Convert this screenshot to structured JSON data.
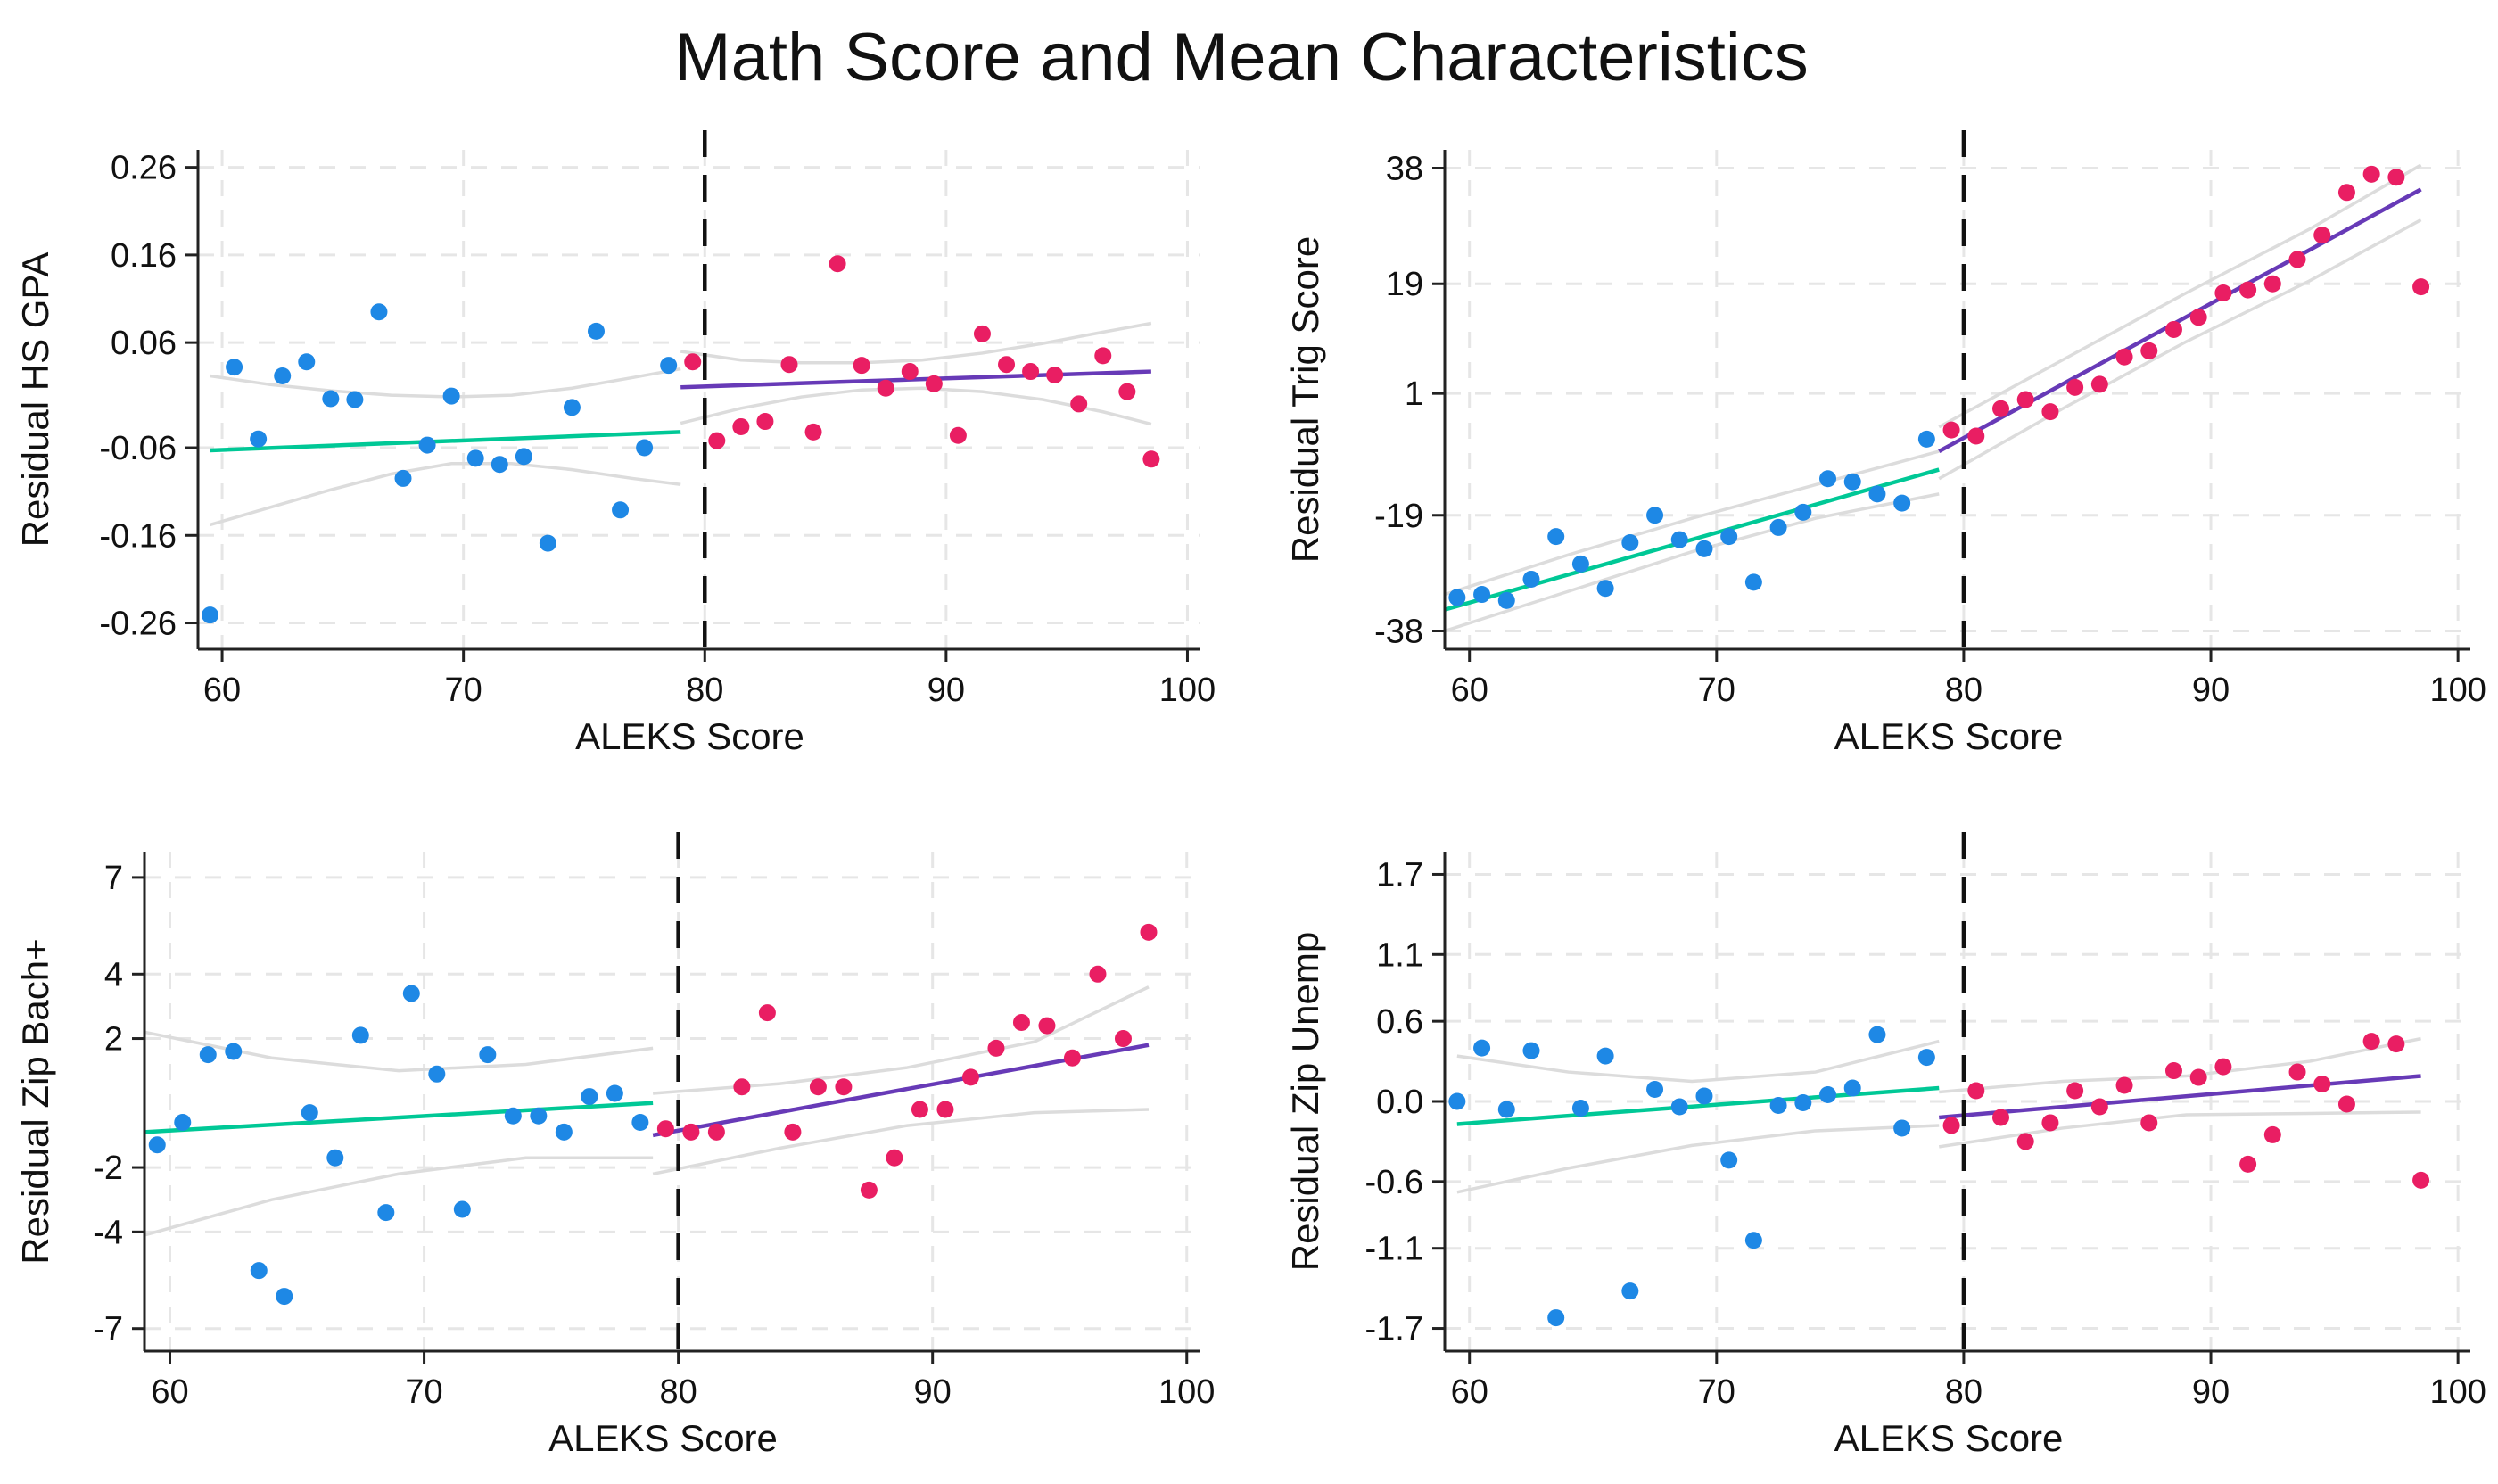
{
  "figure": {
    "title": "Math Score and Mean Characteristics",
    "colors": {
      "below_points": "#1e88e5",
      "above_points": "#e91e63",
      "below_fit": "#00c896",
      "above_fit": "#673ab7",
      "ci": "#dcdcdc",
      "cutoff": "#111111"
    }
  },
  "chart_data": [
    {
      "type": "scatter",
      "xlabel": "ALEKS Score",
      "ylabel": "Residual HS GPA",
      "xlim": [
        59,
        100.5
      ],
      "ylim": [
        -0.29,
        0.28
      ],
      "xticks": [
        60,
        70,
        80,
        90,
        100
      ],
      "yticks": [
        0.26,
        0.16,
        0.06,
        -0.06,
        -0.16,
        -0.26
      ],
      "ytick_labels": [
        "0.26",
        "0.16",
        "0.06",
        "-0.06",
        "-0.16",
        "-0.26"
      ],
      "cutoff": 80,
      "series": [
        {
          "name": "below",
          "x": [
            59.5,
            60.5,
            61.5,
            62.5,
            63.5,
            64.5,
            65.5,
            66.5,
            67.5,
            68.5,
            69.5,
            70.5,
            71.5,
            72.5,
            73.5,
            74.5,
            75.5,
            76.5,
            77.5,
            78.5
          ],
          "y": [
            -0.251,
            0.032,
            -0.05,
            0.022,
            0.038,
            -0.004,
            -0.005,
            0.095,
            -0.095,
            -0.057,
            -0.001,
            -0.072,
            -0.079,
            -0.07,
            -0.169,
            -0.014,
            0.073,
            -0.131,
            -0.06,
            0.034
          ]
        },
        {
          "name": "above",
          "x": [
            79.5,
            80.5,
            81.5,
            82.5,
            83.5,
            84.5,
            85.5,
            86.5,
            87.5,
            88.5,
            89.5,
            90.5,
            91.5,
            92.5,
            93.5,
            94.5,
            95.5,
            96.5,
            97.5,
            98.5
          ],
          "y": [
            0.038,
            -0.052,
            -0.036,
            -0.03,
            0.035,
            -0.042,
            0.15,
            0.034,
            0.008,
            0.027,
            0.013,
            -0.046,
            0.07,
            0.035,
            0.027,
            0.023,
            -0.01,
            0.045,
            0.004,
            -0.073
          ]
        }
      ],
      "fits": [
        {
          "name": "below",
          "x": [
            59.5,
            79
          ],
          "y": [
            -0.063,
            -0.042
          ]
        },
        {
          "name": "above",
          "x": [
            79,
            98.5
          ],
          "y": [
            0.009,
            0.027
          ]
        }
      ],
      "ci_bands": [
        {
          "name": "below",
          "x": [
            59.5,
            62,
            64.5,
            67,
            69.5,
            72,
            74.5,
            77,
            79
          ],
          "upper": [
            0.022,
            0.012,
            0.005,
            0.0,
            -0.002,
            0.0,
            0.008,
            0.02,
            0.03
          ],
          "lower": [
            -0.148,
            -0.128,
            -0.108,
            -0.09,
            -0.078,
            -0.078,
            -0.085,
            -0.095,
            -0.102
          ]
        },
        {
          "name": "above",
          "x": [
            79,
            81.5,
            84,
            86.5,
            89,
            91.5,
            94,
            96.5,
            98.5
          ],
          "upper": [
            0.05,
            0.04,
            0.037,
            0.037,
            0.04,
            0.048,
            0.059,
            0.072,
            0.082
          ],
          "lower": [
            -0.032,
            -0.015,
            -0.002,
            0.006,
            0.008,
            0.004,
            -0.005,
            -0.019,
            -0.033
          ]
        }
      ]
    },
    {
      "type": "scatter",
      "xlabel": "ALEKS Score",
      "ylabel": "Residual Trig Score",
      "xlim": [
        59,
        100.5
      ],
      "ylim": [
        -41,
        41
      ],
      "xticks": [
        60,
        70,
        80,
        90,
        100
      ],
      "yticks": [
        38,
        19,
        1,
        -19,
        -38
      ],
      "ytick_labels": [
        "38",
        "19",
        "1",
        "-19",
        "-38"
      ],
      "cutoff": 80,
      "series": [
        {
          "name": "below",
          "x": [
            59.5,
            60.5,
            61.5,
            62.5,
            63.5,
            64.5,
            65.5,
            66.5,
            67.5,
            68.5,
            69.5,
            70.5,
            71.5,
            72.5,
            73.5,
            74.5,
            75.5,
            76.5,
            77.5,
            78.5
          ],
          "y": [
            -32.5,
            -32.0,
            -33.0,
            -29.5,
            -22.5,
            -27.0,
            -31.0,
            -23.5,
            -19.0,
            -23.0,
            -24.5,
            -22.5,
            -30.0,
            -21.0,
            -18.5,
            -13.0,
            -13.5,
            -15.5,
            -17.0,
            -6.5
          ]
        },
        {
          "name": "above",
          "x": [
            79.5,
            80.5,
            81.5,
            82.5,
            83.5,
            84.5,
            85.5,
            86.5,
            87.5,
            88.5,
            89.5,
            90.5,
            91.5,
            92.5,
            93.5,
            94.5,
            95.5,
            96.5,
            97.5,
            98.5
          ],
          "y": [
            -5.0,
            -6.0,
            -1.5,
            0.0,
            -2.0,
            2.0,
            2.5,
            7.0,
            8.0,
            11.5,
            13.5,
            17.5,
            18.0,
            19.0,
            23.0,
            27.0,
            34.0,
            37.0,
            36.5,
            18.5
          ]
        },
        {
          "name": "below_extra",
          "x": [],
          "y": []
        }
      ],
      "fits": [
        {
          "name": "below",
          "x": [
            59,
            79
          ],
          "y": [
            -34.5,
            -11.5
          ]
        },
        {
          "name": "above",
          "x": [
            79,
            98.5
          ],
          "y": [
            -8.5,
            34.5
          ]
        }
      ],
      "ci_bands": [
        {
          "name": "below",
          "x": [
            59,
            64,
            69,
            74,
            79
          ],
          "upper": [
            -32.0,
            -25.5,
            -19.5,
            -14.0,
            -8.5
          ],
          "lower": [
            -38.0,
            -31.5,
            -25.0,
            -19.5,
            -15.5
          ]
        },
        {
          "name": "above",
          "x": [
            79,
            84,
            89,
            94,
            98.5
          ],
          "upper": [
            -4.5,
            6.5,
            17.5,
            28.0,
            38.5
          ],
          "lower": [
            -13.0,
            -1.5,
            9.5,
            19.5,
            29.5
          ]
        }
      ]
    },
    {
      "type": "scatter",
      "xlabel": "ALEKS Score",
      "ylabel": "Residual Zip Bach+",
      "xlim": [
        59,
        100.5
      ],
      "ylim": [
        -7.7,
        7.8
      ],
      "xticks": [
        60,
        70,
        80,
        90,
        100
      ],
      "yticks": [
        7,
        4,
        2,
        -2,
        -4,
        -7
      ],
      "ytick_labels": [
        "7",
        "4",
        "2",
        "-2",
        "-4",
        "-7"
      ],
      "cutoff": 80,
      "series": [
        {
          "name": "below",
          "x": [
            59.5,
            60.5,
            61.5,
            62.5,
            63.5,
            64.5,
            65.5,
            66.5,
            67.5,
            68.5,
            69.5,
            70.5,
            71.5,
            72.5,
            73.5,
            74.5,
            75.5,
            76.5,
            77.5,
            78.5
          ],
          "y": [
            -1.3,
            -0.6,
            1.5,
            1.6,
            -5.2,
            -6.0,
            -0.3,
            -1.7,
            2.1,
            -3.4,
            3.4,
            0.9,
            -3.3,
            1.5,
            -0.4,
            -0.4,
            -0.9,
            0.2,
            0.3,
            -0.6
          ]
        },
        {
          "name": "above",
          "x": [
            79.5,
            80.5,
            81.5,
            82.5,
            83.5,
            84.5,
            85.5,
            86.5,
            87.5,
            88.5,
            89.5,
            90.5,
            91.5,
            92.5,
            93.5,
            94.5,
            95.5,
            96.5,
            97.5,
            98.5
          ],
          "y": [
            -0.8,
            -0.9,
            -0.9,
            0.5,
            2.8,
            -0.9,
            0.5,
            0.5,
            -2.7,
            -1.7,
            -0.2,
            -0.2,
            0.8,
            1.7,
            2.5,
            2.4,
            1.4,
            4.0,
            2.0,
            5.3
          ]
        }
      ],
      "fits": [
        {
          "name": "below",
          "x": [
            59,
            79
          ],
          "y": [
            -0.9,
            0.0
          ]
        },
        {
          "name": "above",
          "x": [
            79,
            98.5
          ],
          "y": [
            -1.0,
            1.8
          ]
        }
      ],
      "ci_bands": [
        {
          "name": "below",
          "x": [
            59,
            64,
            69,
            74,
            79
          ],
          "upper": [
            2.2,
            1.4,
            1.0,
            1.2,
            1.7
          ],
          "lower": [
            -4.1,
            -3.0,
            -2.2,
            -1.7,
            -1.7
          ]
        },
        {
          "name": "above",
          "x": [
            79,
            84,
            89,
            94,
            98.5
          ],
          "upper": [
            0.3,
            0.6,
            1.1,
            1.9,
            3.6
          ],
          "lower": [
            -2.2,
            -1.4,
            -0.7,
            -0.3,
            -0.2
          ]
        }
      ]
    },
    {
      "type": "scatter",
      "xlabel": "ALEKS Score",
      "ylabel": "Residual Zip Unemp",
      "xlim": [
        59,
        100.5
      ],
      "ylim": [
        -1.87,
        1.87
      ],
      "xticks": [
        60,
        70,
        80,
        90,
        100
      ],
      "yticks": [
        1.7,
        1.1,
        0.6,
        0.0,
        -0.6,
        -1.1,
        -1.7
      ],
      "ytick_labels": [
        "1.7",
        "1.1",
        "0.6",
        "0.0",
        "-0.6",
        "-1.1",
        "-1.7"
      ],
      "cutoff": 80,
      "series": [
        {
          "name": "below",
          "x": [
            59.5,
            60.5,
            61.5,
            62.5,
            63.5,
            64.5,
            65.5,
            66.5,
            67.5,
            68.5,
            69.5,
            70.5,
            71.5,
            72.5,
            73.5,
            74.5,
            75.5,
            76.5,
            77.5,
            78.5
          ],
          "y": [
            0.0,
            0.4,
            -0.06,
            0.38,
            -1.62,
            -0.05,
            0.34,
            -1.42,
            0.09,
            -0.04,
            0.04,
            -0.44,
            -1.04,
            -0.03,
            -0.01,
            0.05,
            0.1,
            0.5,
            -0.2,
            0.33
          ]
        },
        {
          "name": "above",
          "x": [
            79.5,
            80.5,
            81.5,
            82.5,
            83.5,
            84.5,
            85.5,
            86.5,
            87.5,
            88.5,
            89.5,
            90.5,
            91.5,
            92.5,
            93.5,
            94.5,
            95.5,
            96.5,
            97.5,
            98.5
          ],
          "y": [
            -0.18,
            0.08,
            -0.12,
            -0.3,
            -0.16,
            0.08,
            -0.04,
            0.12,
            -0.16,
            0.23,
            0.18,
            0.26,
            -0.47,
            -0.25,
            0.22,
            0.13,
            -0.02,
            0.45,
            0.43,
            -0.59
          ]
        }
      ],
      "fits": [
        {
          "name": "below",
          "x": [
            59.5,
            79
          ],
          "y": [
            -0.17,
            0.1
          ]
        },
        {
          "name": "above",
          "x": [
            79,
            98.5
          ],
          "y": [
            -0.12,
            0.19
          ]
        }
      ],
      "ci_bands": [
        {
          "name": "below",
          "x": [
            59.5,
            64,
            69,
            74,
            79
          ],
          "upper": [
            0.34,
            0.22,
            0.15,
            0.22,
            0.45
          ],
          "lower": [
            -0.68,
            -0.5,
            -0.33,
            -0.22,
            -0.18
          ]
        },
        {
          "name": "above",
          "x": [
            79,
            84,
            89,
            94,
            98.5
          ],
          "upper": [
            0.07,
            0.15,
            0.19,
            0.3,
            0.47
          ],
          "lower": [
            -0.34,
            -0.2,
            -0.1,
            -0.09,
            -0.08
          ]
        }
      ]
    }
  ]
}
